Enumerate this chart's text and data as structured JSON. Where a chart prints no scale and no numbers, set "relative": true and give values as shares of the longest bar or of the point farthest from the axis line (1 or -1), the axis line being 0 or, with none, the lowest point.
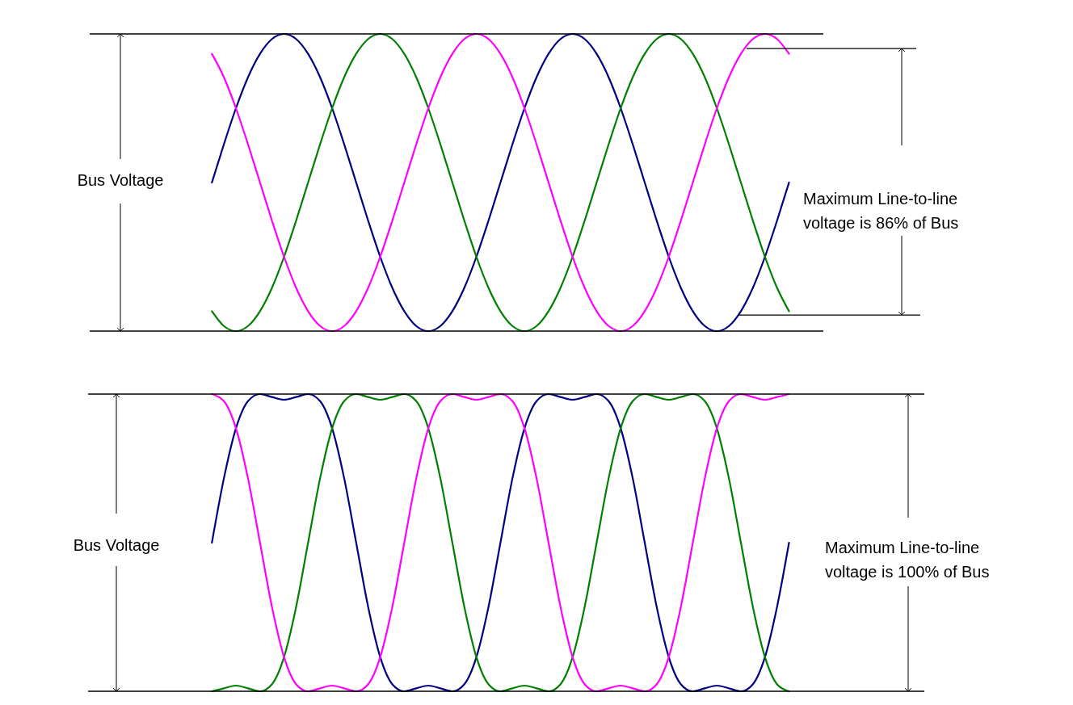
{
  "chart_data": [
    {
      "type": "line",
      "relative": true,
      "categories": [
        null,
        null,
        null,
        null,
        null,
        null,
        null,
        null,
        null,
        null,
        null,
        null,
        null,
        null,
        null,
        null,
        null,
        null,
        null,
        null,
        null,
        null,
        null,
        null,
        null,
        null,
        null,
        null,
        null,
        null,
        null,
        null,
        null,
        null,
        null,
        null,
        null,
        null,
        null,
        null,
        null,
        null,
        null,
        null,
        null,
        null,
        null,
        null,
        null
      ],
      "series": [
        {
          "color": "#000080",
          "values": [
            0.5,
            0.629,
            0.75,
            0.854,
            0.933,
            0.983,
            1,
            0.983,
            0.933,
            0.854,
            0.75,
            0.629,
            0.5,
            0.371,
            0.25,
            0.146,
            0.067,
            0.017,
            0,
            0.017,
            0.067,
            0.146,
            0.25,
            0.371,
            0.5,
            0.629,
            0.75,
            0.854,
            0.933,
            0.983,
            1,
            0.983,
            0.933,
            0.854,
            0.75,
            0.629,
            0.5,
            0.371,
            0.25,
            0.146,
            0.067,
            0.017,
            0,
            0.017,
            0.067,
            0.146,
            0.25,
            0.371,
            0.5
          ]
        },
        {
          "color": "#008000",
          "values": [
            0.067,
            0.017,
            0,
            0.017,
            0.067,
            0.146,
            0.25,
            0.371,
            0.5,
            0.629,
            0.75,
            0.854,
            0.933,
            0.983,
            1,
            0.983,
            0.933,
            0.854,
            0.75,
            0.629,
            0.5,
            0.371,
            0.25,
            0.146,
            0.067,
            0.017,
            0,
            0.017,
            0.067,
            0.146,
            0.25,
            0.371,
            0.5,
            0.629,
            0.75,
            0.854,
            0.933,
            0.983,
            1,
            0.983,
            0.933,
            0.854,
            0.75,
            0.629,
            0.5,
            0.371,
            0.25,
            0.146,
            0.067
          ]
        },
        {
          "color": "#ff00ff",
          "values": [
            0.933,
            0.854,
            0.75,
            0.629,
            0.5,
            0.371,
            0.25,
            0.146,
            0.067,
            0.017,
            0,
            0.017,
            0.067,
            0.146,
            0.25,
            0.371,
            0.5,
            0.629,
            0.75,
            0.854,
            0.933,
            0.983,
            1,
            0.983,
            0.933,
            0.854,
            0.75,
            0.629,
            0.5,
            0.371,
            0.25,
            0.146,
            0.067,
            0.017,
            0,
            0.017,
            0.067,
            0.146,
            0.25,
            0.371,
            0.5,
            0.629,
            0.75,
            0.854,
            0.933,
            0.983,
            1,
            0.983,
            0.933
          ]
        }
      ],
      "ref_lines": [
        {
          "axis": "y",
          "value": 0,
          "color": "#000000"
        },
        {
          "axis": "y",
          "value": 1,
          "color": "#000000"
        },
        {
          "axis": "y",
          "value": 0.951,
          "color": "#000000"
        },
        {
          "axis": "y",
          "value": 0.054,
          "color": "#000000"
        }
      ],
      "annotations": [
        "Bus Voltage",
        "Maximum Line-to-line\nvoltage is 86% of Bus"
      ]
    },
    {
      "type": "line",
      "relative": true,
      "categories": [
        null,
        null,
        null,
        null,
        null,
        null,
        null,
        null,
        null,
        null,
        null,
        null,
        null,
        null,
        null,
        null,
        null,
        null,
        null,
        null,
        null,
        null,
        null,
        null,
        null,
        null,
        null,
        null,
        null,
        null,
        null,
        null,
        null,
        null,
        null,
        null,
        null,
        null,
        null,
        null,
        null,
        null,
        null,
        null,
        null,
        null,
        null,
        null,
        null
      ],
      "series": [
        {
          "color": "#000080",
          "values": [
            0.5,
            0.717,
            0.885,
            0.976,
            1,
            0.99,
            0.981,
            0.99,
            1,
            0.976,
            0.885,
            0.717,
            0.5,
            0.283,
            0.115,
            0.024,
            0,
            0.01,
            0.019,
            0.01,
            0,
            0.024,
            0.115,
            0.283,
            0.5,
            0.717,
            0.885,
            0.976,
            1,
            0.99,
            0.981,
            0.99,
            1,
            0.976,
            0.885,
            0.717,
            0.5,
            0.283,
            0.115,
            0.024,
            0,
            0.01,
            0.019,
            0.01,
            0,
            0.024,
            0.115,
            0.283,
            0.5
          ]
        },
        {
          "color": "#008000",
          "values": [
            0,
            0.01,
            0.019,
            0.01,
            0,
            0.024,
            0.115,
            0.283,
            0.5,
            0.717,
            0.885,
            0.976,
            1,
            0.99,
            0.981,
            0.99,
            1,
            0.976,
            0.885,
            0.717,
            0.5,
            0.283,
            0.115,
            0.024,
            0,
            0.01,
            0.019,
            0.01,
            0,
            0.024,
            0.115,
            0.283,
            0.5,
            0.717,
            0.885,
            0.976,
            1,
            0.99,
            0.981,
            0.99,
            1,
            0.976,
            0.885,
            0.717,
            0.5,
            0.283,
            0.115,
            0.024,
            0
          ]
        },
        {
          "color": "#ff00ff",
          "values": [
            1,
            0.976,
            0.885,
            0.717,
            0.5,
            0.283,
            0.115,
            0.024,
            0,
            0.01,
            0.019,
            0.01,
            0,
            0.024,
            0.115,
            0.283,
            0.5,
            0.717,
            0.885,
            0.976,
            1,
            0.99,
            0.981,
            0.99,
            1,
            0.976,
            0.885,
            0.717,
            0.5,
            0.283,
            0.115,
            0.024,
            0,
            0.01,
            0.019,
            0.01,
            0,
            0.024,
            0.115,
            0.283,
            0.5,
            0.717,
            0.885,
            0.976,
            1,
            0.99,
            0.981,
            0.99,
            1
          ]
        }
      ],
      "ref_lines": [
        {
          "axis": "y",
          "value": 0,
          "color": "#000000"
        },
        {
          "axis": "y",
          "value": 1,
          "color": "#000000"
        }
      ],
      "annotations": [
        "Bus Voltage",
        "Maximum Line-to-line\nvoltage is 100% of Bus"
      ]
    }
  ]
}
